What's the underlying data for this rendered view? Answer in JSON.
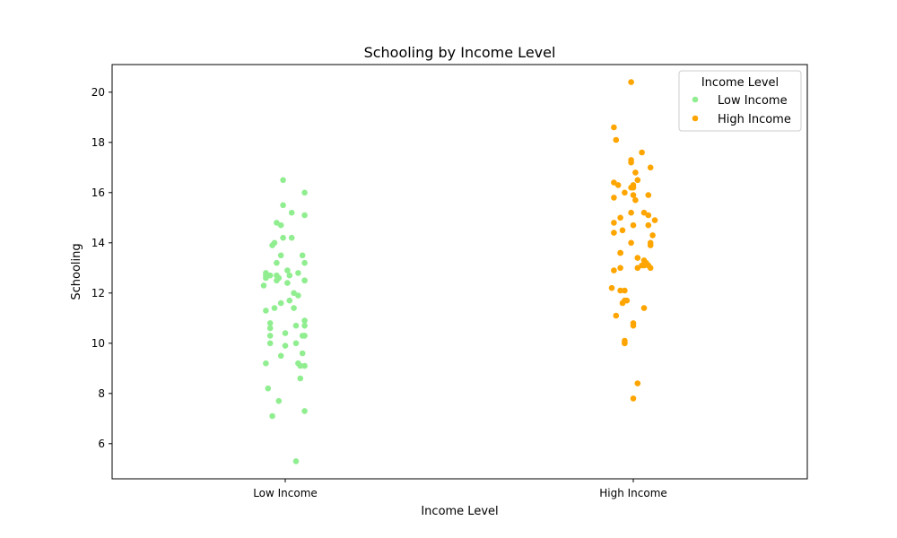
{
  "chart_data": {
    "type": "scatter",
    "title": "Schooling by Income Level",
    "xlabel": "Income Level",
    "ylabel": "Schooling",
    "categories": [
      "Low Income",
      "High Income"
    ],
    "ylim": [
      4.6,
      21.1
    ],
    "yticks": [
      6,
      8,
      10,
      12,
      14,
      16,
      18,
      20
    ],
    "grid": false,
    "legend": {
      "title": "Income Level",
      "placement": "top-right"
    },
    "series": [
      {
        "name": "Low Income",
        "color": "#90ee90",
        "category": "Low Income",
        "points": [
          {
            "jitter": -0.01,
            "y": 16.5
          },
          {
            "jitter": 0.09,
            "y": 16.0
          },
          {
            "jitter": -0.01,
            "y": 15.5
          },
          {
            "jitter": 0.03,
            "y": 15.2
          },
          {
            "jitter": 0.09,
            "y": 15.1
          },
          {
            "jitter": -0.04,
            "y": 14.8
          },
          {
            "jitter": -0.02,
            "y": 14.7
          },
          {
            "jitter": -0.01,
            "y": 14.2
          },
          {
            "jitter": 0.03,
            "y": 14.2
          },
          {
            "jitter": -0.05,
            "y": 14.0
          },
          {
            "jitter": -0.06,
            "y": 13.9
          },
          {
            "jitter": -0.02,
            "y": 13.5
          },
          {
            "jitter": 0.08,
            "y": 13.5
          },
          {
            "jitter": -0.04,
            "y": 13.2
          },
          {
            "jitter": 0.09,
            "y": 13.2
          },
          {
            "jitter": 0.01,
            "y": 12.9
          },
          {
            "jitter": 0.06,
            "y": 12.8
          },
          {
            "jitter": -0.09,
            "y": 12.8
          },
          {
            "jitter": -0.09,
            "y": 12.7
          },
          {
            "jitter": -0.07,
            "y": 12.7
          },
          {
            "jitter": -0.04,
            "y": 12.7
          },
          {
            "jitter": 0.02,
            "y": 12.7
          },
          {
            "jitter": -0.03,
            "y": 12.6
          },
          {
            "jitter": -0.09,
            "y": 12.6
          },
          {
            "jitter": -0.04,
            "y": 12.5
          },
          {
            "jitter": 0.09,
            "y": 12.5
          },
          {
            "jitter": 0.09,
            "y": 12.5
          },
          {
            "jitter": 0.01,
            "y": 12.4
          },
          {
            "jitter": -0.1,
            "y": 12.3
          },
          {
            "jitter": 0.04,
            "y": 12.0
          },
          {
            "jitter": 0.06,
            "y": 11.9
          },
          {
            "jitter": 0.02,
            "y": 11.7
          },
          {
            "jitter": -0.02,
            "y": 11.6
          },
          {
            "jitter": 0.04,
            "y": 11.4
          },
          {
            "jitter": -0.05,
            "y": 11.4
          },
          {
            "jitter": -0.09,
            "y": 11.3
          },
          {
            "jitter": 0.09,
            "y": 10.9
          },
          {
            "jitter": -0.07,
            "y": 10.8
          },
          {
            "jitter": 0.05,
            "y": 10.7
          },
          {
            "jitter": 0.09,
            "y": 10.7
          },
          {
            "jitter": -0.07,
            "y": 10.6
          },
          {
            "jitter": -0.0,
            "y": 10.4
          },
          {
            "jitter": -0.07,
            "y": 10.3
          },
          {
            "jitter": 0.08,
            "y": 10.3
          },
          {
            "jitter": 0.09,
            "y": 10.3
          },
          {
            "jitter": -0.07,
            "y": 10.0
          },
          {
            "jitter": 0.05,
            "y": 10.0
          },
          {
            "jitter": -0.0,
            "y": 9.9
          },
          {
            "jitter": 0.08,
            "y": 9.6
          },
          {
            "jitter": -0.02,
            "y": 9.5
          },
          {
            "jitter": -0.09,
            "y": 9.2
          },
          {
            "jitter": 0.06,
            "y": 9.2
          },
          {
            "jitter": 0.07,
            "y": 9.1
          },
          {
            "jitter": 0.09,
            "y": 9.1
          },
          {
            "jitter": 0.07,
            "y": 8.6
          },
          {
            "jitter": -0.08,
            "y": 8.2
          },
          {
            "jitter": -0.03,
            "y": 7.7
          },
          {
            "jitter": 0.09,
            "y": 7.3
          },
          {
            "jitter": -0.06,
            "y": 7.1
          },
          {
            "jitter": 0.05,
            "y": 5.3
          }
        ]
      },
      {
        "name": "High Income",
        "color": "#ffa500",
        "category": "High Income",
        "points": [
          {
            "jitter": -0.01,
            "y": 20.4
          },
          {
            "jitter": -0.09,
            "y": 18.6
          },
          {
            "jitter": -0.08,
            "y": 18.1
          },
          {
            "jitter": 0.04,
            "y": 17.6
          },
          {
            "jitter": -0.01,
            "y": 17.3
          },
          {
            "jitter": -0.01,
            "y": 17.2
          },
          {
            "jitter": 0.08,
            "y": 17.0
          },
          {
            "jitter": 0.01,
            "y": 16.8
          },
          {
            "jitter": 0.02,
            "y": 16.5
          },
          {
            "jitter": -0.09,
            "y": 16.4
          },
          {
            "jitter": -0.07,
            "y": 16.3
          },
          {
            "jitter": 0.0,
            "y": 16.3
          },
          {
            "jitter": -0.01,
            "y": 16.2
          },
          {
            "jitter": 0.0,
            "y": 16.2
          },
          {
            "jitter": -0.04,
            "y": 16.0
          },
          {
            "jitter": 0.0,
            "y": 15.9
          },
          {
            "jitter": 0.07,
            "y": 15.9
          },
          {
            "jitter": -0.09,
            "y": 15.8
          },
          {
            "jitter": 0.01,
            "y": 15.7
          },
          {
            "jitter": -0.01,
            "y": 15.2
          },
          {
            "jitter": 0.05,
            "y": 15.2
          },
          {
            "jitter": 0.07,
            "y": 15.1
          },
          {
            "jitter": -0.06,
            "y": 15.0
          },
          {
            "jitter": 0.1,
            "y": 14.9
          },
          {
            "jitter": -0.09,
            "y": 14.8
          },
          {
            "jitter": 0.0,
            "y": 14.7
          },
          {
            "jitter": 0.07,
            "y": 14.7
          },
          {
            "jitter": -0.05,
            "y": 14.5
          },
          {
            "jitter": -0.09,
            "y": 14.4
          },
          {
            "jitter": 0.09,
            "y": 14.3
          },
          {
            "jitter": 0.08,
            "y": 14.0
          },
          {
            "jitter": -0.01,
            "y": 14.0
          },
          {
            "jitter": 0.08,
            "y": 13.9
          },
          {
            "jitter": -0.06,
            "y": 13.6
          },
          {
            "jitter": -0.06,
            "y": 13.6
          },
          {
            "jitter": 0.02,
            "y": 13.4
          },
          {
            "jitter": 0.05,
            "y": 13.3
          },
          {
            "jitter": 0.06,
            "y": 13.2
          },
          {
            "jitter": 0.07,
            "y": 13.1
          },
          {
            "jitter": 0.04,
            "y": 13.1
          },
          {
            "jitter": 0.05,
            "y": 13.1
          },
          {
            "jitter": -0.06,
            "y": 13.0
          },
          {
            "jitter": 0.02,
            "y": 13.0
          },
          {
            "jitter": 0.08,
            "y": 13.0
          },
          {
            "jitter": -0.09,
            "y": 12.9
          },
          {
            "jitter": -0.1,
            "y": 12.2
          },
          {
            "jitter": -0.06,
            "y": 12.1
          },
          {
            "jitter": -0.04,
            "y": 12.1
          },
          {
            "jitter": -0.04,
            "y": 11.7
          },
          {
            "jitter": -0.03,
            "y": 11.7
          },
          {
            "jitter": -0.05,
            "y": 11.6
          },
          {
            "jitter": 0.05,
            "y": 11.4
          },
          {
            "jitter": -0.08,
            "y": 11.1
          },
          {
            "jitter": 0.0,
            "y": 10.8
          },
          {
            "jitter": 0.0,
            "y": 10.7
          },
          {
            "jitter": -0.04,
            "y": 10.1
          },
          {
            "jitter": -0.04,
            "y": 10.0
          },
          {
            "jitter": -0.04,
            "y": 10.0
          },
          {
            "jitter": 0.02,
            "y": 8.4
          },
          {
            "jitter": 0.0,
            "y": 7.8
          }
        ]
      }
    ]
  }
}
